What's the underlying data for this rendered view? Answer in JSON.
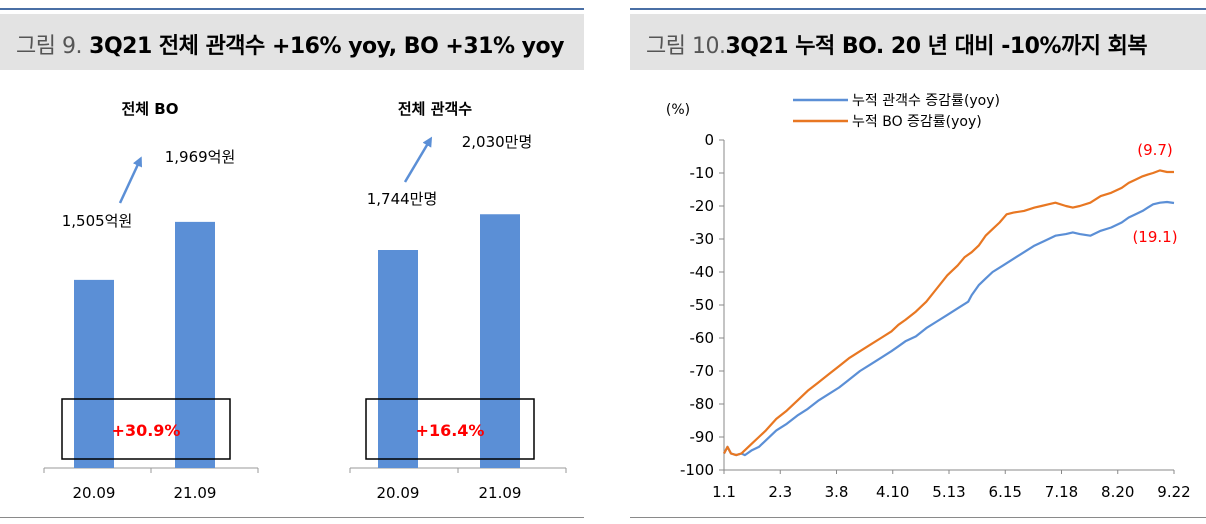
{
  "left_panel": {
    "figure_number": "그림 9.",
    "title": "3Q21 전체 관객수 +16% yoy, BO +31% yoy",
    "colors": {
      "bar": "#5b8fd6",
      "growth_label": "#ff0000",
      "arrow": "#5b8fd6"
    }
  },
  "right_panel": {
    "figure_number": "그림 10.",
    "title": "3Q21 누적 BO. 20 년 대비 -10%까지 회복",
    "colors": {
      "series1": "#5b8fd6",
      "series2": "#e87722",
      "annotation": "#ff0000"
    }
  },
  "chart_data": [
    {
      "type": "bar",
      "title": "전체 BO",
      "categories": [
        "20.09",
        "21.09"
      ],
      "values": [
        1505,
        1969
      ],
      "value_labels": [
        "1,505억원",
        "1,969억원"
      ],
      "growth_label": "+30.9%",
      "ylim": [
        0,
        2400
      ]
    },
    {
      "type": "bar",
      "title": "전체 관객수",
      "categories": [
        "20.09",
        "21.09"
      ],
      "values": [
        1744,
        2030
      ],
      "value_labels": [
        "1,744만명",
        "2,030만명"
      ],
      "growth_label": "+16.4%",
      "ylim": [
        0,
        2400
      ]
    },
    {
      "type": "line",
      "ylabel": "(%)",
      "ylim": [
        -100,
        0
      ],
      "yticks": [
        0,
        -10,
        -20,
        -30,
        -40,
        -50,
        -60,
        -70,
        -80,
        -90,
        -100
      ],
      "xticks": [
        "1.1",
        "2.3",
        "3.8",
        "4.10",
        "5.13",
        "6.15",
        "7.18",
        "8.20",
        "9.22"
      ],
      "legend_position": "top",
      "annotations": [
        {
          "text": "(9.7)",
          "series": "누적 BO 증감률(yoy)"
        },
        {
          "text": "(19.1)",
          "series": "누적 관객수 증감률(yoy)"
        }
      ],
      "series": [
        {
          "name": "누적 관객수 증감률(yoy)",
          "x": [
            0,
            2,
            4,
            7,
            10,
            12,
            16,
            20,
            24,
            30,
            36,
            42,
            48,
            54,
            60,
            66,
            72,
            78,
            84,
            90,
            96,
            100,
            104,
            110,
            116,
            122,
            128,
            134,
            140,
            142,
            146,
            150,
            154,
            160,
            166,
            172,
            178,
            184,
            190,
            196,
            200,
            204,
            210,
            216,
            222,
            228,
            232,
            236,
            240,
            243,
            246,
            250,
            254,
            258
          ],
          "y": [
            -95,
            -93,
            -95,
            -95.5,
            -95,
            -95.5,
            -94,
            -93,
            -91,
            -88,
            -86,
            -83.5,
            -81.5,
            -79,
            -77,
            -75,
            -72.5,
            -70,
            -68,
            -66,
            -64,
            -62.5,
            -61,
            -59.5,
            -57,
            -55,
            -53,
            -51,
            -49,
            -47,
            -44,
            -42,
            -40,
            -38,
            -36,
            -34,
            -32,
            -30.5,
            -29,
            -28.5,
            -28,
            -28.5,
            -29,
            -27.5,
            -26.5,
            -25,
            -23.5,
            -22.5,
            -21.5,
            -20.5,
            -19.5,
            -19,
            -18.8,
            -19.1
          ]
        },
        {
          "name": "누적 BO 증감률(yoy)",
          "x": [
            0,
            2,
            4,
            7,
            10,
            12,
            16,
            20,
            24,
            30,
            36,
            42,
            48,
            54,
            60,
            66,
            72,
            78,
            84,
            90,
            96,
            100,
            104,
            110,
            116,
            122,
            128,
            134,
            138,
            142,
            146,
            150,
            154,
            158,
            162,
            166,
            172,
            178,
            182,
            186,
            190,
            196,
            200,
            204,
            210,
            216,
            222,
            228,
            232,
            236,
            240,
            243,
            246,
            250,
            254,
            258
          ],
          "y": [
            -95,
            -93,
            -95,
            -95.5,
            -95,
            -94,
            -92,
            -90,
            -88,
            -84.5,
            -82,
            -79,
            -76,
            -73.5,
            -71,
            -68.5,
            -66,
            -64,
            -62,
            -60,
            -58,
            -56,
            -54.5,
            -52,
            -49,
            -45,
            -41,
            -38,
            -35.5,
            -34,
            -32,
            -29,
            -27,
            -25,
            -22.5,
            -22,
            -21.5,
            -20.5,
            -20,
            -19.5,
            -19,
            -20,
            -20.5,
            -20,
            -19,
            -17,
            -16,
            -14.5,
            -13,
            -12,
            -11,
            -10.5,
            -10,
            -9.2,
            -9.7,
            -9.7
          ]
        }
      ]
    }
  ]
}
